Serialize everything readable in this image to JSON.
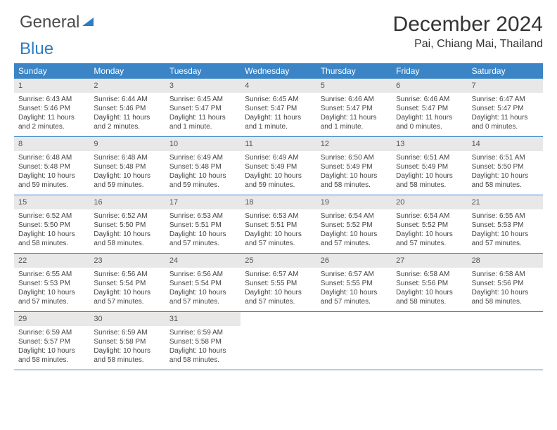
{
  "logo": {
    "text1": "General",
    "text2": "Blue"
  },
  "title": "December 2024",
  "location": "Pai, Chiang Mai, Thailand",
  "colors": {
    "header_bg": "#3b85c6",
    "header_text": "#ffffff",
    "daynum_bg": "#e8e8e8",
    "week_border": "#3b85c6",
    "logo_blue": "#2d7dc2"
  },
  "weekdays": [
    "Sunday",
    "Monday",
    "Tuesday",
    "Wednesday",
    "Thursday",
    "Friday",
    "Saturday"
  ],
  "weeks": [
    [
      {
        "n": "1",
        "sr": "Sunrise: 6:43 AM",
        "ss": "Sunset: 5:46 PM",
        "d1": "Daylight: 11 hours",
        "d2": "and 2 minutes."
      },
      {
        "n": "2",
        "sr": "Sunrise: 6:44 AM",
        "ss": "Sunset: 5:46 PM",
        "d1": "Daylight: 11 hours",
        "d2": "and 2 minutes."
      },
      {
        "n": "3",
        "sr": "Sunrise: 6:45 AM",
        "ss": "Sunset: 5:47 PM",
        "d1": "Daylight: 11 hours",
        "d2": "and 1 minute."
      },
      {
        "n": "4",
        "sr": "Sunrise: 6:45 AM",
        "ss": "Sunset: 5:47 PM",
        "d1": "Daylight: 11 hours",
        "d2": "and 1 minute."
      },
      {
        "n": "5",
        "sr": "Sunrise: 6:46 AM",
        "ss": "Sunset: 5:47 PM",
        "d1": "Daylight: 11 hours",
        "d2": "and 1 minute."
      },
      {
        "n": "6",
        "sr": "Sunrise: 6:46 AM",
        "ss": "Sunset: 5:47 PM",
        "d1": "Daylight: 11 hours",
        "d2": "and 0 minutes."
      },
      {
        "n": "7",
        "sr": "Sunrise: 6:47 AM",
        "ss": "Sunset: 5:47 PM",
        "d1": "Daylight: 11 hours",
        "d2": "and 0 minutes."
      }
    ],
    [
      {
        "n": "8",
        "sr": "Sunrise: 6:48 AM",
        "ss": "Sunset: 5:48 PM",
        "d1": "Daylight: 10 hours",
        "d2": "and 59 minutes."
      },
      {
        "n": "9",
        "sr": "Sunrise: 6:48 AM",
        "ss": "Sunset: 5:48 PM",
        "d1": "Daylight: 10 hours",
        "d2": "and 59 minutes."
      },
      {
        "n": "10",
        "sr": "Sunrise: 6:49 AM",
        "ss": "Sunset: 5:48 PM",
        "d1": "Daylight: 10 hours",
        "d2": "and 59 minutes."
      },
      {
        "n": "11",
        "sr": "Sunrise: 6:49 AM",
        "ss": "Sunset: 5:49 PM",
        "d1": "Daylight: 10 hours",
        "d2": "and 59 minutes."
      },
      {
        "n": "12",
        "sr": "Sunrise: 6:50 AM",
        "ss": "Sunset: 5:49 PM",
        "d1": "Daylight: 10 hours",
        "d2": "and 58 minutes."
      },
      {
        "n": "13",
        "sr": "Sunrise: 6:51 AM",
        "ss": "Sunset: 5:49 PM",
        "d1": "Daylight: 10 hours",
        "d2": "and 58 minutes."
      },
      {
        "n": "14",
        "sr": "Sunrise: 6:51 AM",
        "ss": "Sunset: 5:50 PM",
        "d1": "Daylight: 10 hours",
        "d2": "and 58 minutes."
      }
    ],
    [
      {
        "n": "15",
        "sr": "Sunrise: 6:52 AM",
        "ss": "Sunset: 5:50 PM",
        "d1": "Daylight: 10 hours",
        "d2": "and 58 minutes."
      },
      {
        "n": "16",
        "sr": "Sunrise: 6:52 AM",
        "ss": "Sunset: 5:50 PM",
        "d1": "Daylight: 10 hours",
        "d2": "and 58 minutes."
      },
      {
        "n": "17",
        "sr": "Sunrise: 6:53 AM",
        "ss": "Sunset: 5:51 PM",
        "d1": "Daylight: 10 hours",
        "d2": "and 57 minutes."
      },
      {
        "n": "18",
        "sr": "Sunrise: 6:53 AM",
        "ss": "Sunset: 5:51 PM",
        "d1": "Daylight: 10 hours",
        "d2": "and 57 minutes."
      },
      {
        "n": "19",
        "sr": "Sunrise: 6:54 AM",
        "ss": "Sunset: 5:52 PM",
        "d1": "Daylight: 10 hours",
        "d2": "and 57 minutes."
      },
      {
        "n": "20",
        "sr": "Sunrise: 6:54 AM",
        "ss": "Sunset: 5:52 PM",
        "d1": "Daylight: 10 hours",
        "d2": "and 57 minutes."
      },
      {
        "n": "21",
        "sr": "Sunrise: 6:55 AM",
        "ss": "Sunset: 5:53 PM",
        "d1": "Daylight: 10 hours",
        "d2": "and 57 minutes."
      }
    ],
    [
      {
        "n": "22",
        "sr": "Sunrise: 6:55 AM",
        "ss": "Sunset: 5:53 PM",
        "d1": "Daylight: 10 hours",
        "d2": "and 57 minutes."
      },
      {
        "n": "23",
        "sr": "Sunrise: 6:56 AM",
        "ss": "Sunset: 5:54 PM",
        "d1": "Daylight: 10 hours",
        "d2": "and 57 minutes."
      },
      {
        "n": "24",
        "sr": "Sunrise: 6:56 AM",
        "ss": "Sunset: 5:54 PM",
        "d1": "Daylight: 10 hours",
        "d2": "and 57 minutes."
      },
      {
        "n": "25",
        "sr": "Sunrise: 6:57 AM",
        "ss": "Sunset: 5:55 PM",
        "d1": "Daylight: 10 hours",
        "d2": "and 57 minutes."
      },
      {
        "n": "26",
        "sr": "Sunrise: 6:57 AM",
        "ss": "Sunset: 5:55 PM",
        "d1": "Daylight: 10 hours",
        "d2": "and 57 minutes."
      },
      {
        "n": "27",
        "sr": "Sunrise: 6:58 AM",
        "ss": "Sunset: 5:56 PM",
        "d1": "Daylight: 10 hours",
        "d2": "and 58 minutes."
      },
      {
        "n": "28",
        "sr": "Sunrise: 6:58 AM",
        "ss": "Sunset: 5:56 PM",
        "d1": "Daylight: 10 hours",
        "d2": "and 58 minutes."
      }
    ],
    [
      {
        "n": "29",
        "sr": "Sunrise: 6:59 AM",
        "ss": "Sunset: 5:57 PM",
        "d1": "Daylight: 10 hours",
        "d2": "and 58 minutes."
      },
      {
        "n": "30",
        "sr": "Sunrise: 6:59 AM",
        "ss": "Sunset: 5:58 PM",
        "d1": "Daylight: 10 hours",
        "d2": "and 58 minutes."
      },
      {
        "n": "31",
        "sr": "Sunrise: 6:59 AM",
        "ss": "Sunset: 5:58 PM",
        "d1": "Daylight: 10 hours",
        "d2": "and 58 minutes."
      },
      null,
      null,
      null,
      null
    ]
  ]
}
